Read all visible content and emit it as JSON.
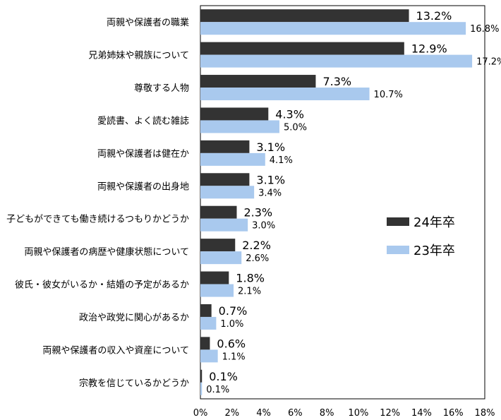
{
  "chart_data": {
    "type": "bar",
    "orientation": "horizontal",
    "categories": [
      "両親や保護者の職業",
      "兄弟姉妹や親族について",
      "尊敬する人物",
      "愛読書、よく読む雑誌",
      "両親や保護者は健在か",
      "両親や保護者の出身地",
      "子どもができても働き続けるつもりかどうか",
      "両親や保護者の病歴や健康状態について",
      "彼氏・彼女がいるか・結婚の予定があるか",
      "政治や政党に関心があるか",
      "両親や保護者の収入や資産について",
      "宗教を信じているかどうか"
    ],
    "series": [
      {
        "name": "24年卒",
        "color": "#333333",
        "values": [
          13.2,
          12.9,
          7.3,
          4.3,
          3.1,
          3.1,
          2.3,
          2.2,
          1.8,
          0.7,
          0.6,
          0.1
        ],
        "labels": [
          "13.2%",
          "12.9%",
          "7.3%",
          "4.3%",
          "3.1%",
          "3.1%",
          "2.3%",
          "2.2%",
          "1.8%",
          "0.7%",
          "0.6%",
          "0.1%"
        ]
      },
      {
        "name": "23年卒",
        "color": "#a9c9ee",
        "values": [
          16.8,
          17.2,
          10.7,
          5.0,
          4.1,
          3.4,
          3.0,
          2.6,
          2.1,
          1.0,
          1.1,
          0.1
        ],
        "labels": [
          "16.8%",
          "17.2%",
          "10.7%",
          "5.0%",
          "4.1%",
          "3.4%",
          "3.0%",
          "2.6%",
          "2.1%",
          "1.0%",
          "1.1%",
          "0.1%"
        ]
      }
    ],
    "xlim": [
      0,
      18
    ],
    "xticks": [
      "0%",
      "2%",
      "4%",
      "6%",
      "8%",
      "10%",
      "12%",
      "14%",
      "16%",
      "18%"
    ],
    "grid": false,
    "legend_position": "right"
  }
}
